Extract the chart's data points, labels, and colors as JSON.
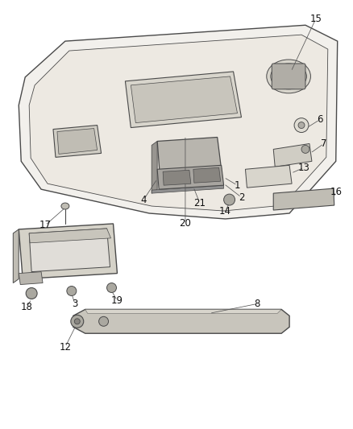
{
  "background_color": "#ffffff",
  "line_color": "#4a4a4a",
  "figsize": [
    4.38,
    5.33
  ],
  "dpi": 100,
  "thin_lw": 0.7,
  "main_lw": 1.0,
  "fill_gray": "#e8e6e0",
  "fill_dark": "#c8c5bc",
  "fill_med": "#d8d5cc",
  "fill_light": "#f0eeea",
  "label_fontsize": 8.5,
  "label_color": "#111111"
}
